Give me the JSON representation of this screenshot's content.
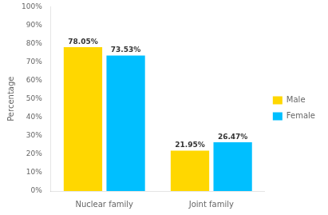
{
  "chart_data": {
    "type": "bar",
    "categories": [
      "Nuclear family",
      "Joint family"
    ],
    "series": [
      {
        "name": "Male",
        "color": "#FFD700",
        "values": [
          78.05,
          21.95
        ],
        "value_labels": [
          "78.05%",
          "21.95%"
        ]
      },
      {
        "name": "Female",
        "color": "#00BFFF",
        "values": [
          73.53,
          26.47
        ],
        "value_labels": [
          "73.53%",
          "26.47%"
        ]
      }
    ],
    "ylabel": "Percentage",
    "ylim": [
      0,
      100
    ],
    "yticks": [
      {
        "value": 0,
        "label": "0%"
      },
      {
        "value": 10,
        "label": "10%"
      },
      {
        "value": 20,
        "label": "20%"
      },
      {
        "value": 30,
        "label": "30%"
      },
      {
        "value": 40,
        "label": "40%"
      },
      {
        "value": 50,
        "label": "50%"
      },
      {
        "value": 60,
        "label": "60%"
      },
      {
        "value": 70,
        "label": "70%"
      },
      {
        "value": 80,
        "label": "80%"
      },
      {
        "value": 90,
        "label": "90%"
      },
      {
        "value": 100,
        "label": "100%"
      }
    ],
    "grid": false,
    "legend": "right",
    "data_labels": true
  }
}
